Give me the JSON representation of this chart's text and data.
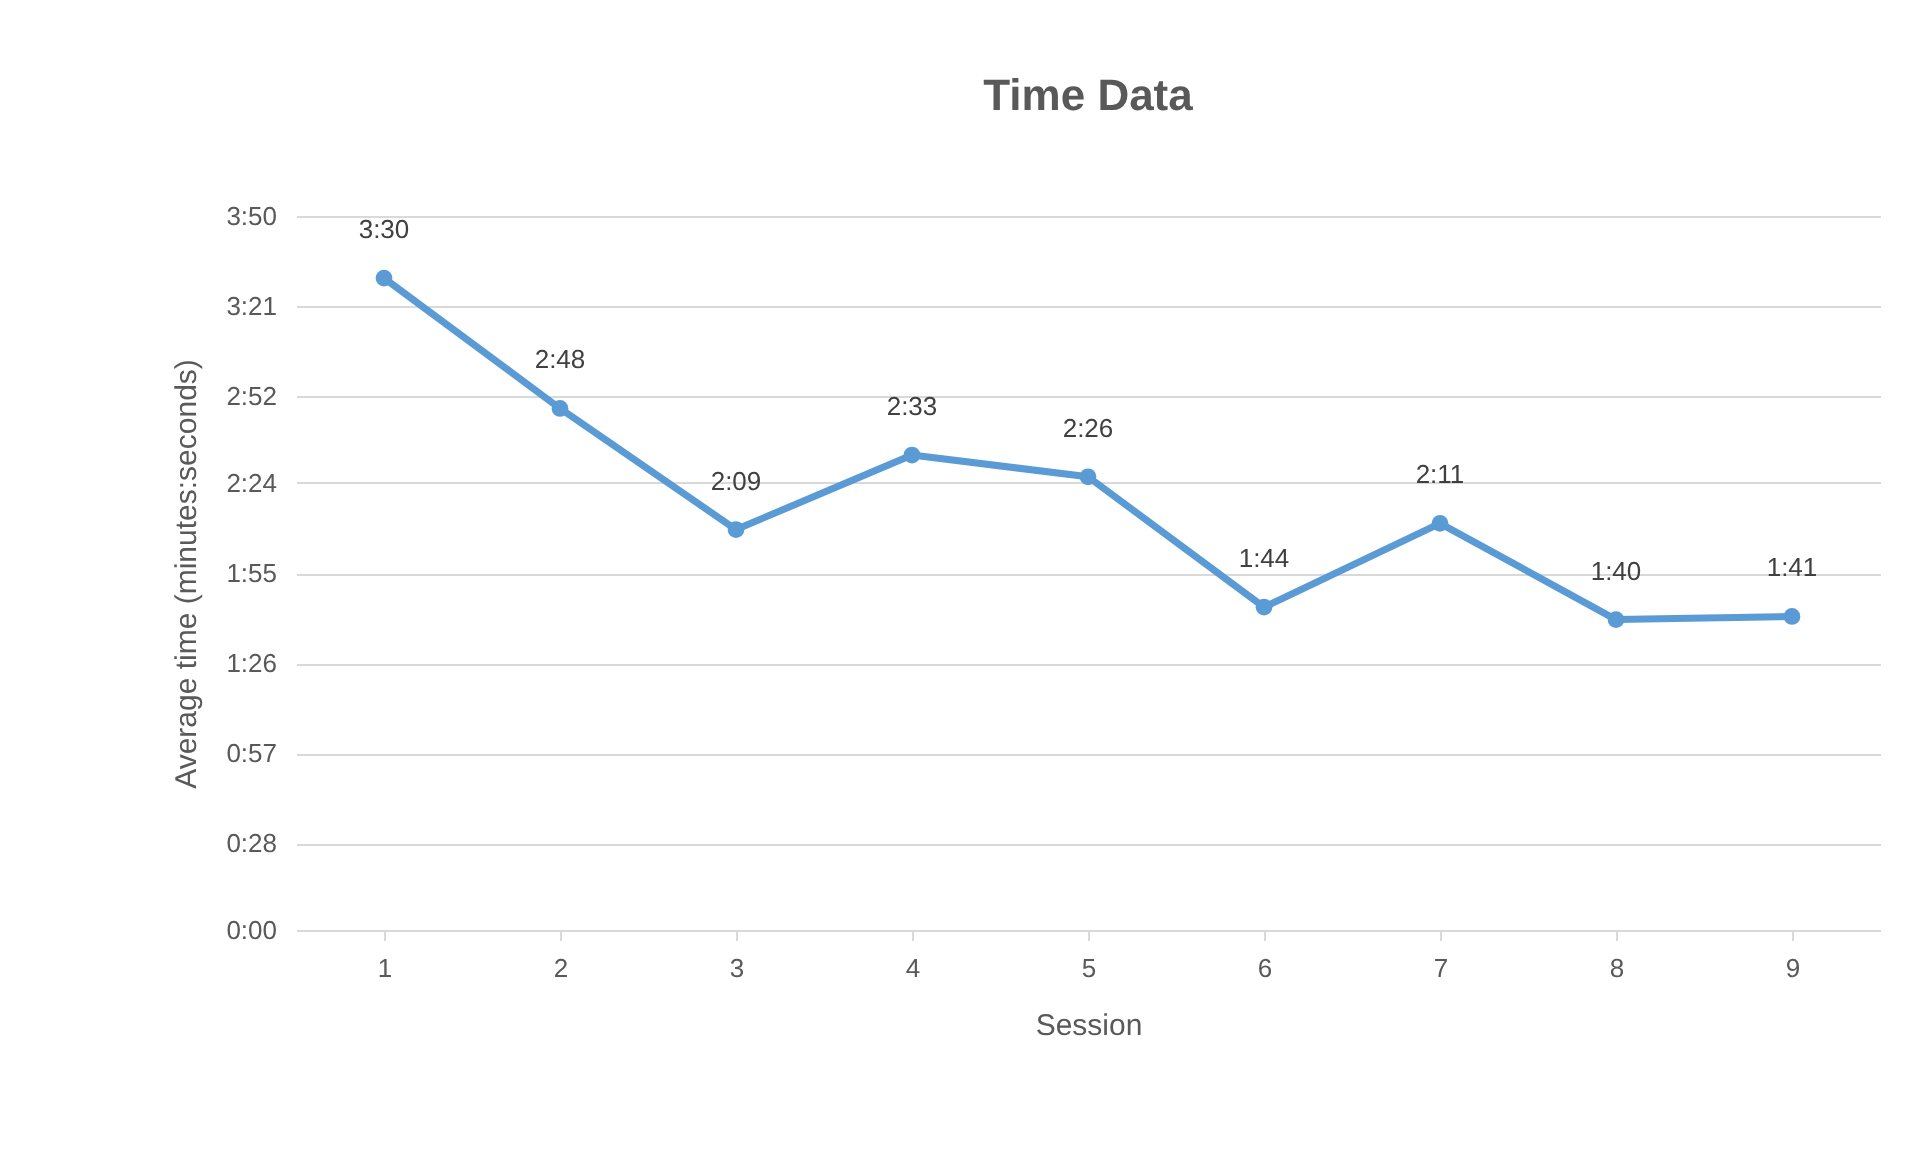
{
  "chart_data": {
    "type": "line",
    "title": "Time Data",
    "xlabel": "Session",
    "ylabel": "Average time (minutes:seconds)",
    "categories": [
      "1",
      "2",
      "3",
      "4",
      "5",
      "6",
      "7",
      "8",
      "9"
    ],
    "series": [
      {
        "color": "#5b9bd5",
        "values": [
          210,
          168,
          129,
          153,
          146,
          104,
          131,
          100,
          101
        ],
        "value_labels": [
          "3:30",
          "2:48",
          "2:09",
          "2:33",
          "2:26",
          "1:44",
          "2:11",
          "1:40",
          "1:41"
        ]
      }
    ],
    "ylim": [
      0,
      230
    ],
    "yticks": [
      {
        "value": 0,
        "label": "0:00"
      },
      {
        "value": 28,
        "label": "0:28"
      },
      {
        "value": 57,
        "label": "0:57"
      },
      {
        "value": 86,
        "label": "1:26"
      },
      {
        "value": 115,
        "label": "1:55"
      },
      {
        "value": 144,
        "label": "2:24"
      },
      {
        "value": 172,
        "label": "2:52"
      },
      {
        "value": 201,
        "label": "3:21"
      },
      {
        "value": 230,
        "label": "3:50"
      }
    ],
    "grid": "y",
    "marker": "circle",
    "line_style": "solid"
  }
}
